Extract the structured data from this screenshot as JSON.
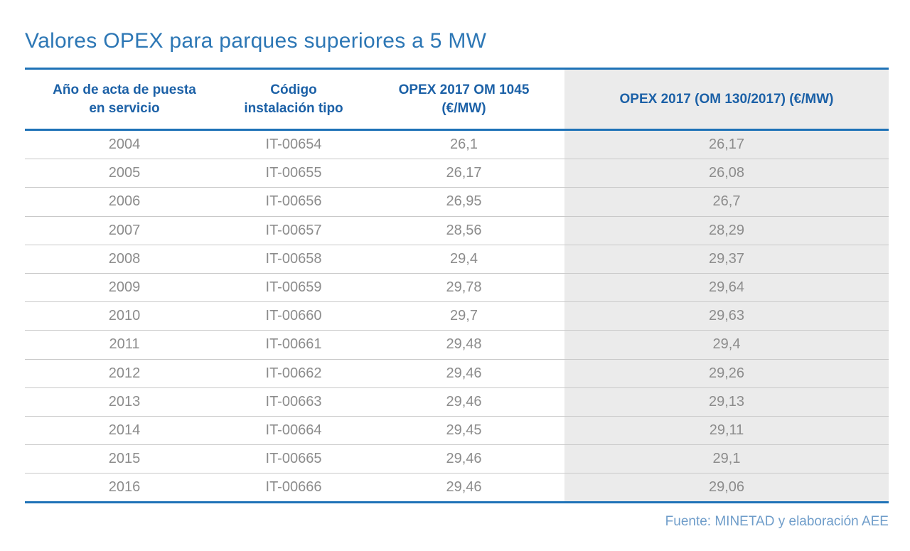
{
  "title": "Valores OPEX para parques superiores a 5 MW",
  "source": "Fuente: MINETAD y elaboración AEE",
  "colors": {
    "accent_blue_rule": "#1e72b7",
    "title_blue": "#2d77b5",
    "header_text_blue": "#1c61a7",
    "body_text_gray": "#8c8c8c",
    "highlight_column_bg": "#ebebeb",
    "row_divider_gray": "#c9c9c9",
    "source_text_blue": "#6f9dca"
  },
  "table": {
    "header_lines": [
      [
        "Año de acta de puesta",
        "en servicio"
      ],
      [
        "Código",
        "instalación tipo"
      ],
      [
        "OPEX 2017 OM 1045",
        "(€/MW)"
      ],
      [
        "OPEX 2017 (OM 130/2017) (€/MW)",
        ""
      ]
    ]
  },
  "chart_data": {
    "type": "table",
    "title": "Valores OPEX para parques superiores a 5 MW",
    "columns": [
      "Año de acta de puesta en servicio",
      "Código instalación tipo",
      "OPEX 2017 OM 1045 (€/MW)",
      "OPEX 2017 (OM 130/2017) (€/MW)"
    ],
    "rows": [
      [
        "2004",
        "IT-00654",
        "26,1",
        "26,17"
      ],
      [
        "2005",
        "IT-00655",
        "26,17",
        "26,08"
      ],
      [
        "2006",
        "IT-00656",
        "26,95",
        "26,7"
      ],
      [
        "2007",
        "IT-00657",
        "28,56",
        "28,29"
      ],
      [
        "2008",
        "IT-00658",
        "29,4",
        "29,37"
      ],
      [
        "2009",
        "IT-00659",
        "29,78",
        "29,64"
      ],
      [
        "2010",
        "IT-00660",
        "29,7",
        "29,63"
      ],
      [
        "2011",
        "IT-00661",
        "29,48",
        "29,4"
      ],
      [
        "2012",
        "IT-00662",
        "29,46",
        "29,26"
      ],
      [
        "2013",
        "IT-00663",
        "29,46",
        "29,13"
      ],
      [
        "2014",
        "IT-00664",
        "29,45",
        "29,11"
      ],
      [
        "2015",
        "IT-00665",
        "29,46",
        "29,1"
      ],
      [
        "2016",
        "IT-00666",
        "29,46",
        "29,06"
      ]
    ],
    "source": "Fuente: MINETAD y elaboración AEE"
  }
}
